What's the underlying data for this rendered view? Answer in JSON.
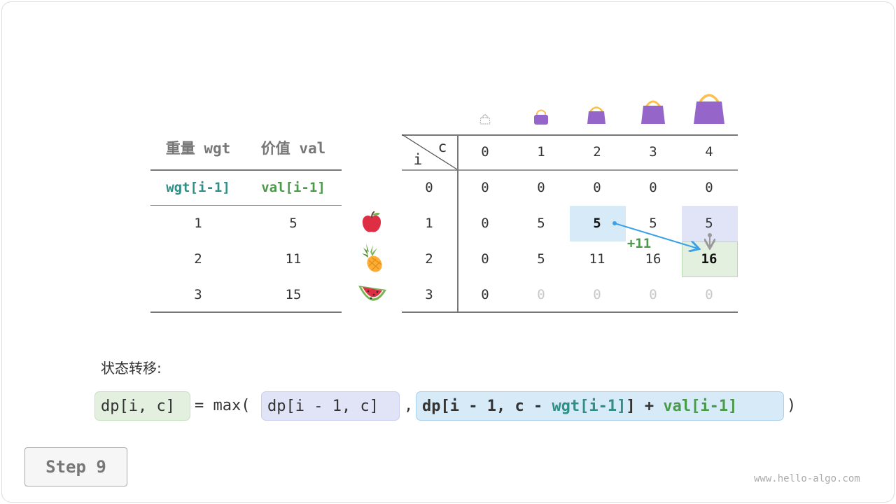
{
  "item_table": {
    "headers": [
      "重量 wgt",
      "价值 val"
    ],
    "subheaders": [
      "wgt[i-1]",
      "val[i-1]"
    ],
    "rows": [
      [
        "1",
        "5"
      ],
      [
        "2",
        "11"
      ],
      [
        "3",
        "15"
      ]
    ],
    "item_icons": [
      "apple-icon",
      "pineapple-icon",
      "watermelon-icon"
    ]
  },
  "dp_table": {
    "corner_c": "c",
    "corner_i": "i",
    "capacities": [
      "0",
      "1",
      "2",
      "3",
      "4"
    ],
    "row_labels": [
      "0",
      "1",
      "2",
      "3"
    ],
    "rows": [
      [
        "0",
        "0",
        "0",
        "0",
        "0"
      ],
      [
        "0",
        "5",
        "5",
        "5",
        "5"
      ],
      [
        "0",
        "5",
        "11",
        "16",
        "16"
      ],
      [
        "0",
        "0",
        "0",
        "0",
        "0"
      ]
    ],
    "highlight": {
      "source_cell": "dp[1][2]",
      "compare_cell": "dp[1][4]",
      "target_cell": "dp[2][4]"
    },
    "annotation": "+11",
    "colors": {
      "source": "#d6eaf8",
      "compare": "#e1e4f7",
      "target": "#e3f0e0",
      "arrow": "#3aa0e8",
      "bag": "#9565c9"
    }
  },
  "formula": {
    "label": "状态转移:",
    "lhs": "dp[i, c]",
    "eq": "= max(",
    "opt1": "dp[i - 1, c]",
    "comma": ",",
    "opt2_a": "dp[i - 1, c - ",
    "opt2_wgt": "wgt[i-1]",
    "opt2_b": "] + ",
    "opt2_val": "val[i-1]",
    "close": ")"
  },
  "step_label": "Step 9",
  "watermark": "www.hello-algo.com"
}
